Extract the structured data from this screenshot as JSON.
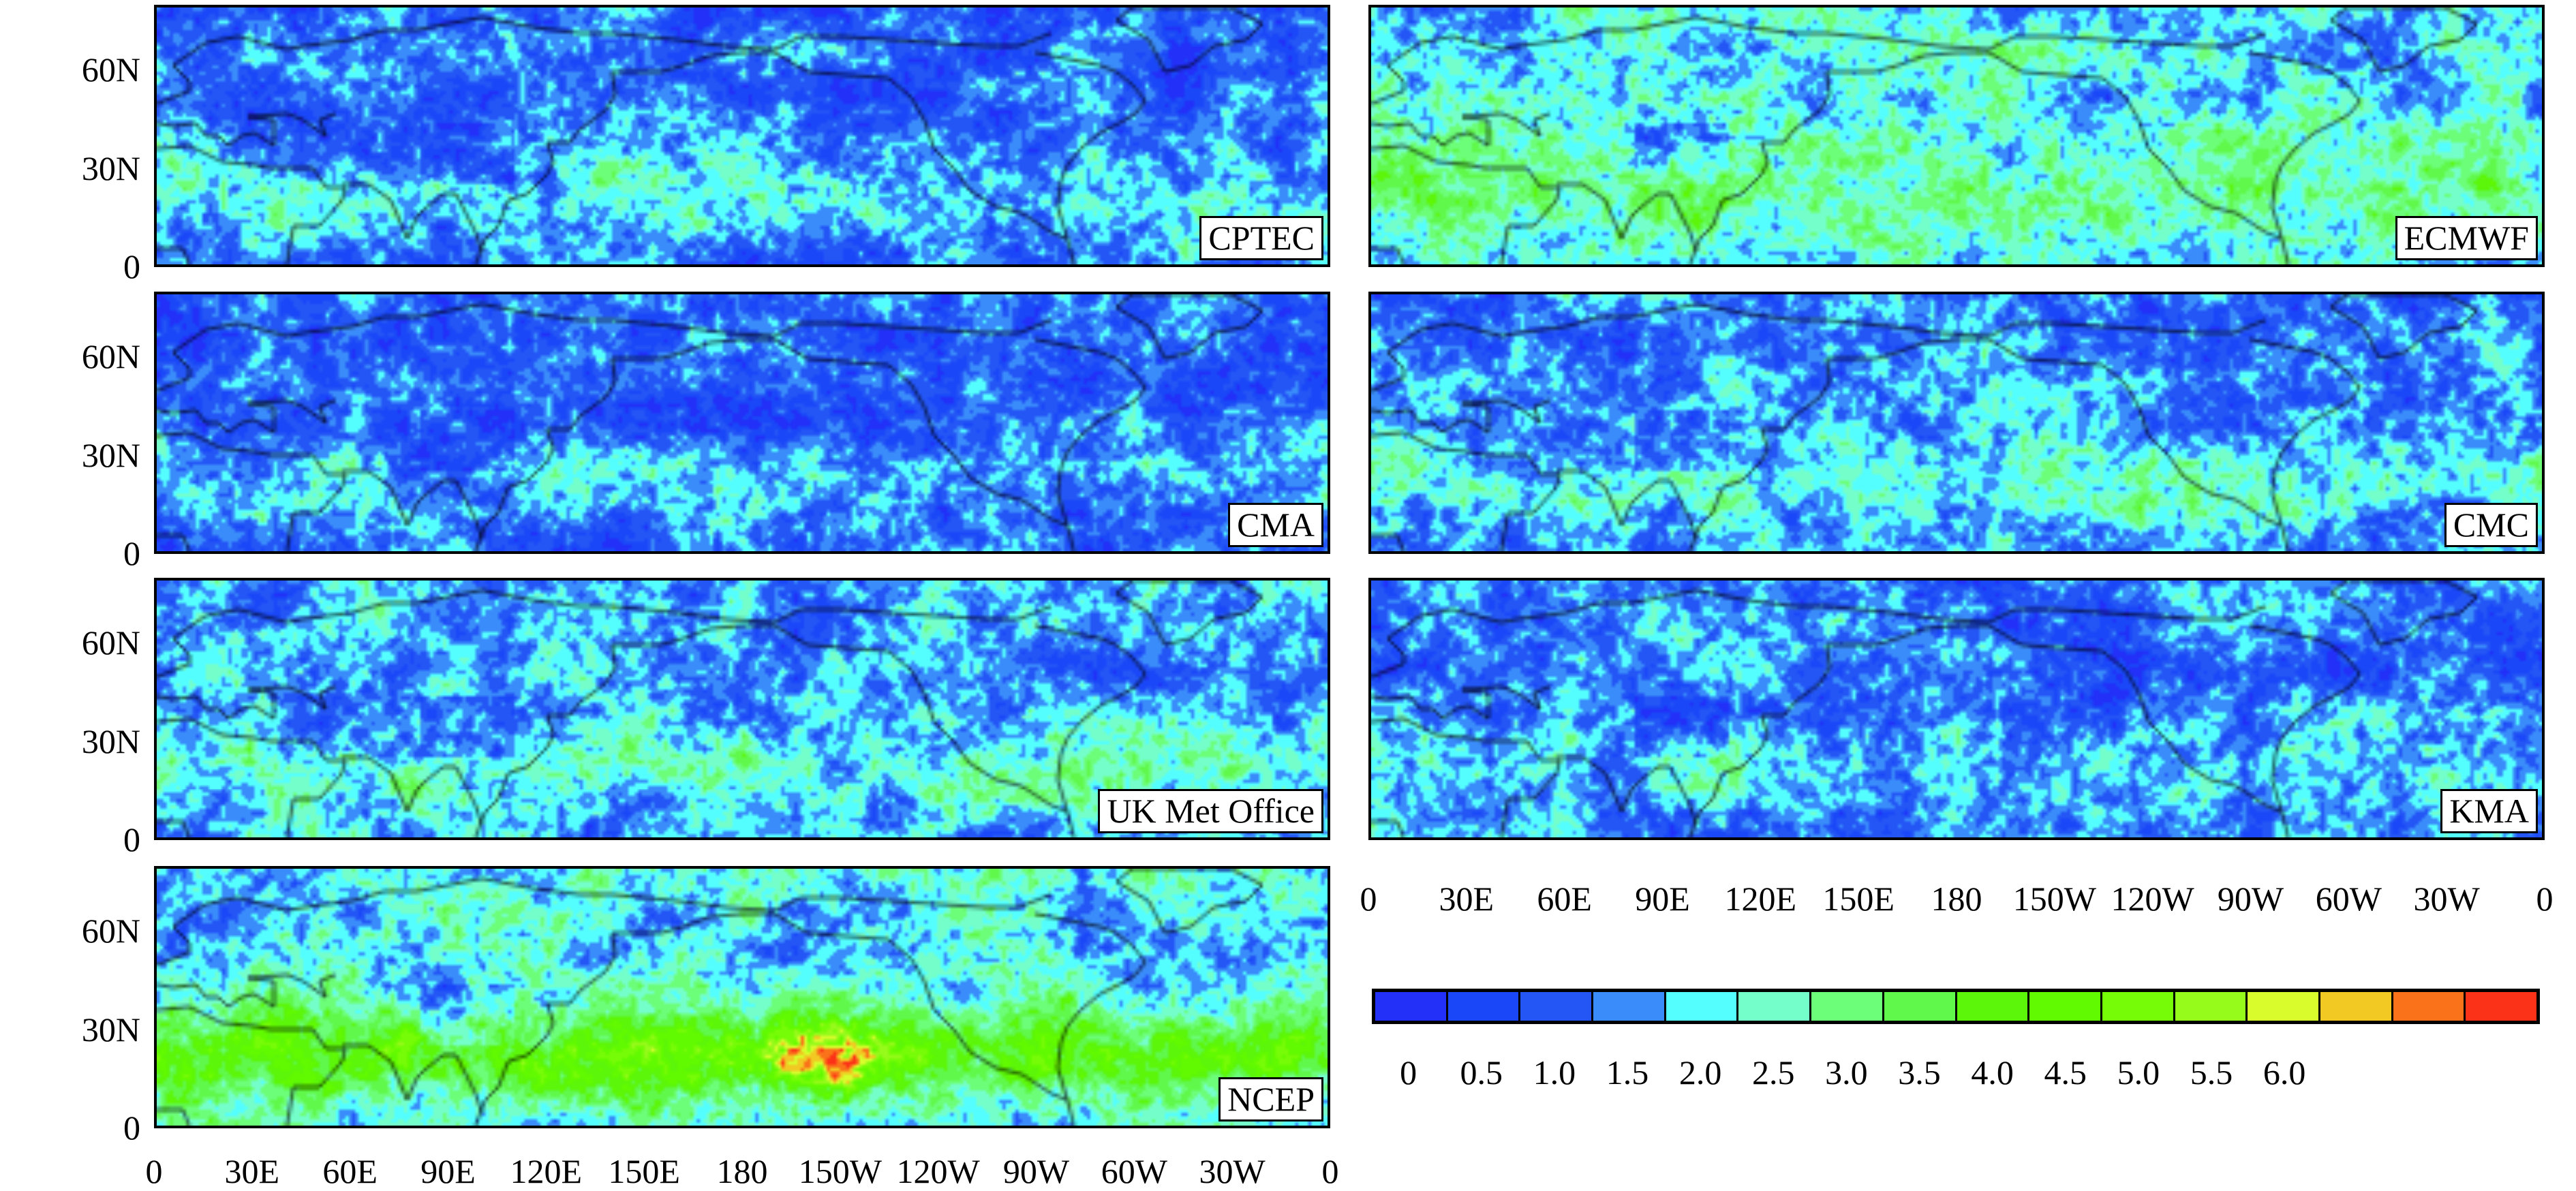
{
  "chart_data": {
    "type": "heatmap",
    "title": "",
    "panels": [
      {
        "name": "CPTEC"
      },
      {
        "name": "ECMWF"
      },
      {
        "name": "CMA"
      },
      {
        "name": "CMC"
      },
      {
        "name": "UK Met Office"
      },
      {
        "name": "KMA"
      },
      {
        "name": "NCEP"
      }
    ],
    "lat_ticks": [
      "60N",
      "30N",
      "0"
    ],
    "lon_ticks": [
      "0",
      "30E",
      "60E",
      "90E",
      "120E",
      "150E",
      "180",
      "150W",
      "120W",
      "90W",
      "60W",
      "30W",
      "0"
    ],
    "lat_range": [
      0,
      80
    ],
    "lon_range": [
      0,
      360
    ],
    "colorbar": {
      "labels": [
        "0",
        "0.5",
        "1.0",
        "1.5",
        "2.0",
        "2.5",
        "3.0",
        "3.5",
        "4.0",
        "4.5",
        "5.0",
        "5.5",
        "6.0"
      ],
      "colors": [
        "#2230f8",
        "#1a48f8",
        "#2456f6",
        "#3a8cfa",
        "#54fefe",
        "#74feca",
        "#6cfe78",
        "#60f84a",
        "#5cf60a",
        "#62fa00",
        "#76fc06",
        "#96fa1a",
        "#d8fc2c",
        "#f2c822",
        "#fa721a",
        "#fc3218"
      ]
    }
  }
}
